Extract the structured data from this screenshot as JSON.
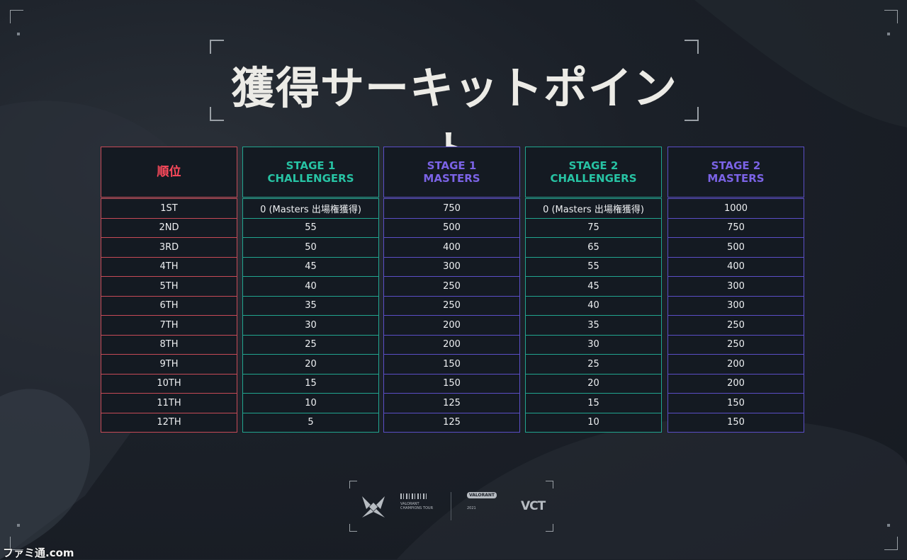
{
  "title": "獲得サーキットポイント",
  "columns": [
    {
      "header_lines": [
        "順位"
      ],
      "rows": [
        "1ST",
        "2ND",
        "3RD",
        "4TH",
        "5TH",
        "6TH",
        "7TH",
        "8TH",
        "9TH",
        "10TH",
        "11TH",
        "12TH"
      ]
    },
    {
      "header_lines": [
        "STAGE 1",
        "CHALLENGERS"
      ],
      "rows": [
        "0 (Masters 出場権獲得)",
        "55",
        "50",
        "45",
        "40",
        "35",
        "30",
        "25",
        "20",
        "15",
        "10",
        "5"
      ]
    },
    {
      "header_lines": [
        "STAGE 1",
        "MASTERS"
      ],
      "rows": [
        "750",
        "500",
        "400",
        "300",
        "250",
        "250",
        "200",
        "200",
        "150",
        "150",
        "125",
        "125"
      ]
    },
    {
      "header_lines": [
        "STAGE 2",
        "CHALLENGERS"
      ],
      "rows": [
        "0 (Masters 出場権獲得)",
        "75",
        "65",
        "55",
        "45",
        "40",
        "35",
        "30",
        "25",
        "20",
        "15",
        "10"
      ]
    },
    {
      "header_lines": [
        "STAGE 2",
        "MASTERS"
      ],
      "rows": [
        "1000",
        "750",
        "500",
        "400",
        "300",
        "300",
        "250",
        "250",
        "200",
        "200",
        "150",
        "150"
      ]
    }
  ],
  "footer": {
    "tour_name_line1": "VALORANT",
    "tour_name_line2": "CHAMPIONS TOUR",
    "year": "2021",
    "valorant_logo_text": "VALORANT",
    "vct_text": "VCT"
  },
  "watermark": "ファミ通.com",
  "colors": {
    "rank": "#ff4a5c",
    "challengers": "#27c3a4",
    "masters": "#7b63e6"
  }
}
